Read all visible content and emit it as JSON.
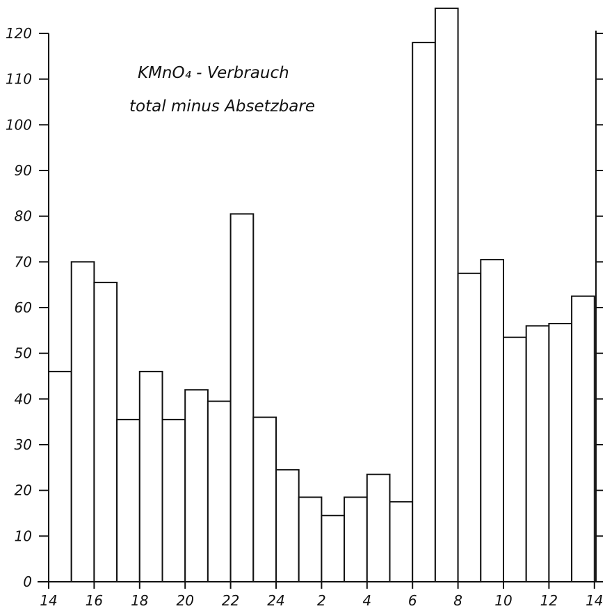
{
  "chart_data": {
    "type": "bar",
    "title_line1": "KMnO₄ - Verbrauch",
    "title_line2": "total minus Absetzbare",
    "x_tick_labels": [
      "14",
      "16",
      "18",
      "20",
      "22",
      "24",
      "2",
      "4",
      "6",
      "8",
      "10",
      "12",
      "14"
    ],
    "y_tick_labels": [
      "0",
      "10",
      "20",
      "30",
      "40",
      "50",
      "60",
      "70",
      "80",
      "90",
      "100",
      "110",
      "120"
    ],
    "ylim": [
      0,
      120
    ],
    "values": [
      46,
      70,
      65.5,
      35.5,
      46,
      35.5,
      42,
      39.5,
      80.5,
      36,
      24.5,
      18.5,
      14.5,
      18.5,
      23.5,
      17.5,
      118,
      125.5,
      67.5,
      70.5,
      53.5,
      56,
      56.5,
      62.5
    ],
    "grid": false,
    "legend": "none"
  }
}
